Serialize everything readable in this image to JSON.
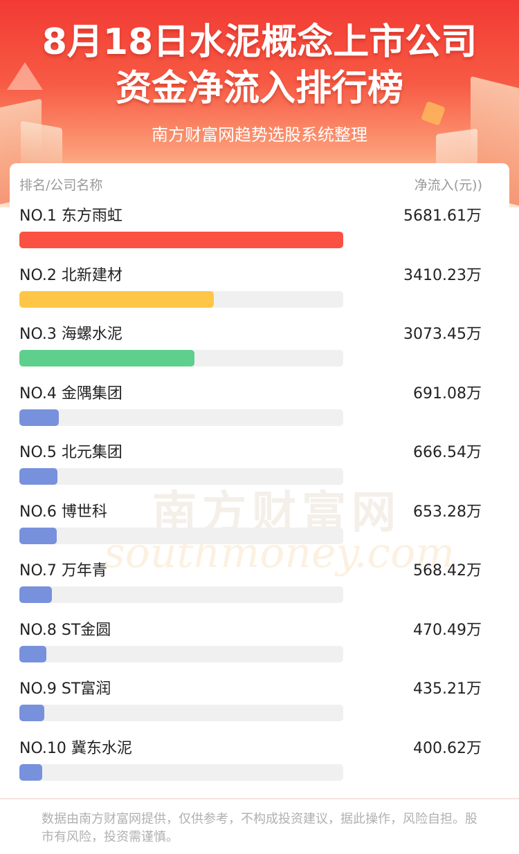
{
  "header": {
    "title_line1": "8月18日水泥概念上市公司",
    "title_line2": "资金净流入排行榜",
    "subtitle": "南方财富网趋势选股系统整理"
  },
  "columns": {
    "left": "排名/公司名称",
    "right": "净流入(元))"
  },
  "watermark": {
    "cn": "南方财富网",
    "en": "southmoney.com"
  },
  "colors": {
    "rank1": "#fa5142",
    "rank2": "#fec647",
    "rank3": "#5fcf8e",
    "others": "#7891dc"
  },
  "chart_data": {
    "type": "bar",
    "title": "8月18日水泥概念上市公司资金净流入排行榜",
    "ylabel": "净流入(元))",
    "unit": "万",
    "categories": [
      "东方雨虹",
      "北新建材",
      "海螺水泥",
      "金隅集团",
      "北元集团",
      "博世科",
      "万年青",
      "ST金圆",
      "ST富润",
      "冀东水泥"
    ],
    "ranks": [
      "NO.1",
      "NO.2",
      "NO.3",
      "NO.4",
      "NO.5",
      "NO.6",
      "NO.7",
      "NO.8",
      "NO.9",
      "NO.10"
    ],
    "values": [
      5681.61,
      3410.23,
      3073.45,
      691.08,
      666.54,
      653.28,
      568.42,
      470.49,
      435.21,
      400.62
    ],
    "labels": [
      "5681.61万",
      "3410.23万",
      "3073.45万",
      "691.08万",
      "666.54万",
      "653.28万",
      "568.42万",
      "470.49万",
      "435.21万",
      "400.62万"
    ]
  },
  "footer": "数据由南方财富网提供，仅供参考，不构成投资建议，据此操作，风险自担。股市有风险，投资需谨慎。"
}
